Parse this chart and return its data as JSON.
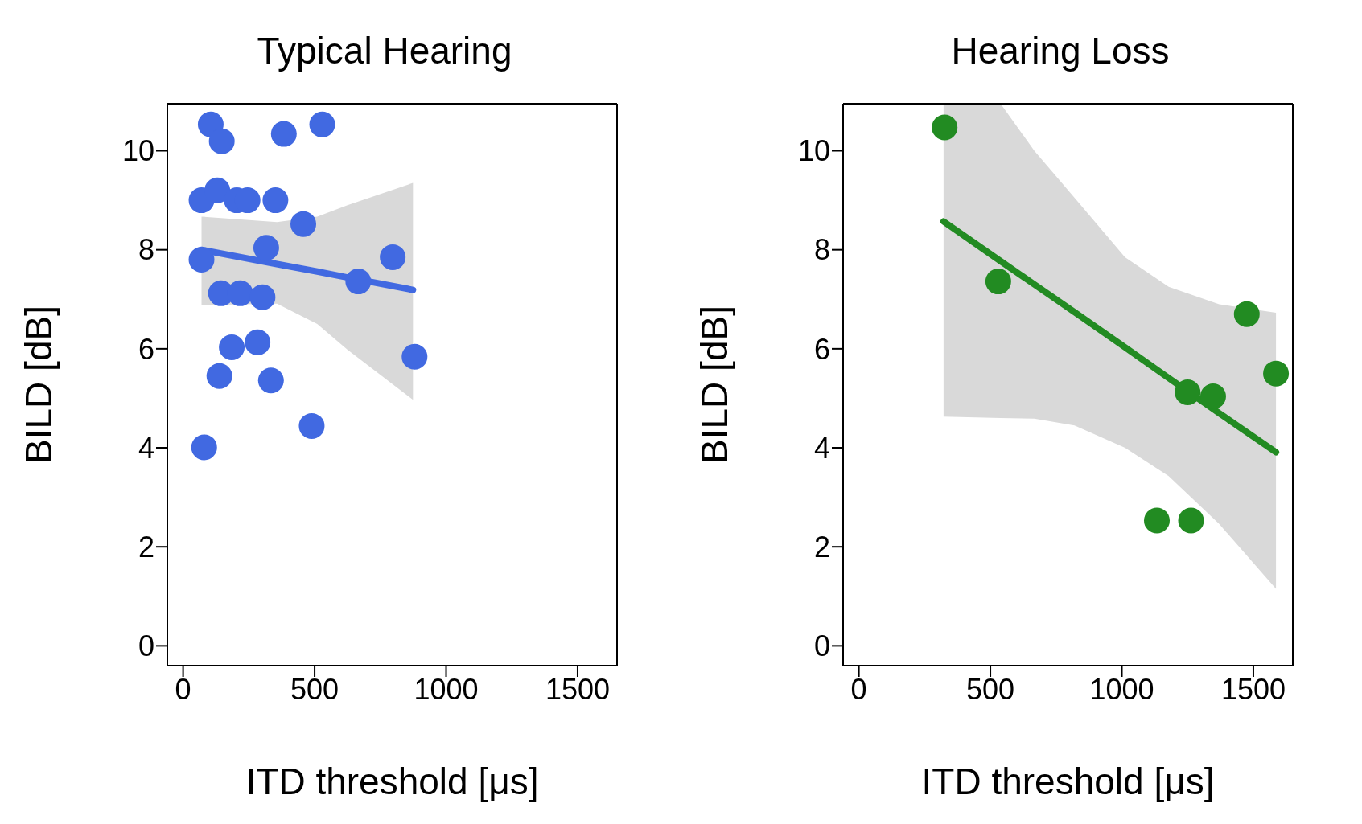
{
  "chart_data": [
    {
      "type": "scatter",
      "title": "Typical Hearing",
      "xlabel": "ITD threshold [μs]",
      "ylabel": "BILD [dB]",
      "xlim": [
        -60,
        1650
      ],
      "ylim": [
        -0.4,
        10.95
      ],
      "xticks": [
        0,
        500,
        1000,
        1500
      ],
      "yticks": [
        0,
        2,
        4,
        6,
        8,
        10
      ],
      "grid": false,
      "line_style": "solid",
      "x": [
        105,
        147,
        383,
        529,
        70,
        130,
        204,
        245,
        351,
        457,
        316,
        70,
        797,
        666,
        144,
        217,
        302,
        185,
        283,
        138,
        334,
        880,
        489,
        80
      ],
      "series": [
        {
          "marker": "circle",
          "color": "#4169e1",
          "values": [
            10.53,
            10.19,
            10.34,
            10.53,
            9.0,
            9.2,
            9.0,
            9.0,
            9.0,
            8.52,
            8.04,
            7.8,
            7.85,
            7.36,
            7.12,
            7.12,
            7.04,
            6.03,
            6.13,
            5.45,
            5.36,
            5.84,
            4.44,
            4.01
          ]
        },
        {
          "type": "line",
          "marker": "none",
          "color": "#4169e1",
          "x": [
            70,
            357,
            510,
            625,
            874
          ],
          "values": [
            8.0,
            7.71,
            7.56,
            7.44,
            7.19
          ],
          "lower": [
            6.88,
            6.91,
            6.5,
            5.98,
            4.97
          ],
          "upper": [
            8.67,
            8.56,
            8.67,
            8.9,
            9.35
          ]
        }
      ]
    },
    {
      "type": "scatter",
      "title": "Hearing Loss",
      "xlabel": "ITD threshold [μs]",
      "ylabel": "BILD [dB]",
      "xlim": [
        -60,
        1650
      ],
      "ylim": [
        -0.4,
        10.95
      ],
      "xticks": [
        0,
        500,
        1000,
        1500
      ],
      "yticks": [
        0,
        2,
        4,
        6,
        8,
        10
      ],
      "grid": false,
      "line_style": "solid",
      "x": [
        326,
        530,
        1475,
        1586,
        1250,
        1347,
        1133,
        1263
      ],
      "series": [
        {
          "marker": "circle",
          "color": "#228b22",
          "values": [
            10.47,
            7.36,
            6.7,
            5.5,
            5.12,
            5.04,
            2.53,
            2.53
          ]
        },
        {
          "type": "line",
          "marker": "none",
          "color": "#228b22",
          "x": [
            322,
            539,
            667,
            820,
            1012,
            1178,
            1370,
            1586
          ],
          "values": [
            8.57,
            7.77,
            7.3,
            6.74,
            6.03,
            5.41,
            4.7,
            3.91
          ],
          "lower": [
            4.63,
            4.6,
            4.59,
            4.45,
            4.0,
            3.43,
            2.46,
            1.15
          ],
          "upper": [
            10.95,
            10.95,
            10.0,
            9.05,
            7.85,
            7.25,
            6.9,
            6.73
          ]
        }
      ]
    }
  ]
}
